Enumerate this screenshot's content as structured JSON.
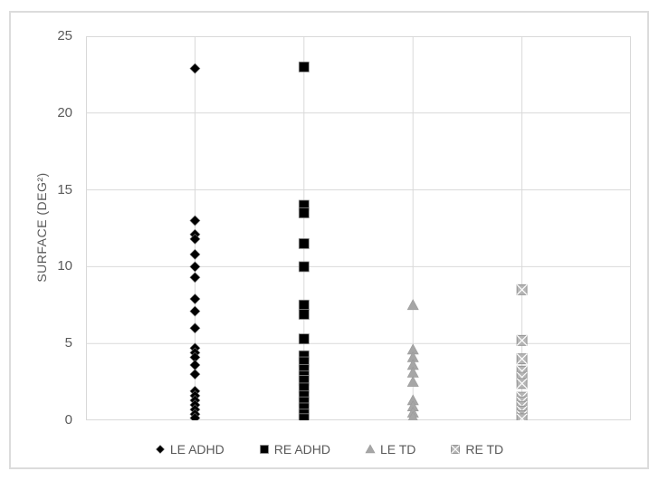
{
  "figure": {
    "background": "#ffffff",
    "border_color": "#dcdcdc"
  },
  "axes": {
    "y_title": "SURFACE (DEG²)",
    "y_tick_labels": [
      "0",
      "5",
      "10",
      "15",
      "20",
      "25"
    ],
    "text_color": "#595959",
    "grid_color": "#d9d9d9"
  },
  "chart_data": {
    "type": "scatter",
    "title": "",
    "xlabel": "",
    "ylabel": "SURFACE (DEG²)",
    "ylim": [
      0,
      25
    ],
    "xlim": [
      0,
      5
    ],
    "y_tick_values": [
      0,
      5,
      10,
      15,
      20,
      25
    ],
    "grid": true,
    "vertical_gridlines_at_x": [
      1,
      2,
      3,
      4
    ],
    "legend_position": "bottom",
    "series": [
      {
        "name": "LE ADHD",
        "marker": "diamond",
        "color": "#000000",
        "edge_color": "#6e6e6e",
        "x": 1,
        "values": [
          22.9,
          13.0,
          12.1,
          11.8,
          10.8,
          10.0,
          9.3,
          7.9,
          7.1,
          6.0,
          4.7,
          4.4,
          4.1,
          3.6,
          3.0,
          1.9,
          1.6,
          1.3,
          1.0,
          0.7,
          0.4,
          0.15
        ]
      },
      {
        "name": "RE ADHD",
        "marker": "square",
        "color": "#000000",
        "edge_color": "#8c8c8c",
        "x": 2,
        "values": [
          23.0,
          14.0,
          13.5,
          11.5,
          10.0,
          7.5,
          6.9,
          5.3,
          4.2,
          3.8,
          3.3,
          2.9,
          2.6,
          2.1,
          1.6,
          1.2,
          0.8,
          0.4,
          0.1
        ]
      },
      {
        "name": "LE TD",
        "marker": "triangle",
        "color": "#a6a6a6",
        "edge_color": "#9a9a9a",
        "x": 3,
        "values": [
          7.5,
          4.6,
          4.1,
          3.6,
          3.1,
          2.5,
          1.3,
          0.9,
          0.5,
          0.2
        ]
      },
      {
        "name": "RE TD",
        "marker": "x-square",
        "color": "#b5b5b5",
        "edge_color": "#8f8f8f",
        "x": 4,
        "values": [
          8.5,
          5.2,
          4.0,
          3.2,
          2.8,
          2.4,
          1.5,
          1.2,
          0.9,
          0.6,
          0.3,
          0.1
        ]
      }
    ]
  }
}
